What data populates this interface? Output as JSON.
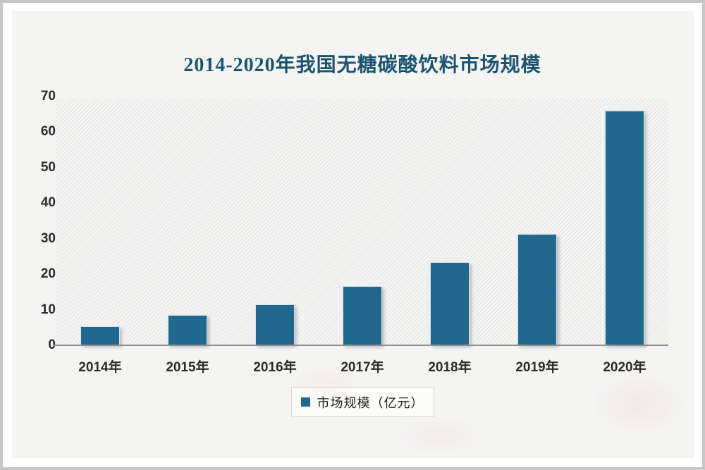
{
  "chart_data": {
    "type": "bar",
    "title": "2014-2020年我国无糖碳酸饮料市场规模",
    "categories": [
      "2014年",
      "2015年",
      "2016年",
      "2017年",
      "2018年",
      "2019年",
      "2020年"
    ],
    "values": [
      5.4,
      8.5,
      11.5,
      16.7,
      23.4,
      31.4,
      66.1
    ],
    "series_name": "市场规模（亿元）",
    "xlabel": "",
    "ylabel": "",
    "ylim": [
      0,
      70
    ],
    "ytick_step": 10,
    "ytick_labels": [
      "0",
      "10",
      "20",
      "30",
      "40",
      "50",
      "60",
      "70"
    ],
    "grid": false,
    "legend_position": "bottom",
    "plot_background": "diagonal-hatch"
  },
  "legend": {
    "label": "市场规模（亿元）"
  },
  "colors": {
    "bar": "#20688e",
    "bar_edge": "#dbeaf2",
    "title_text": "#1b5470",
    "axis_text": "#2b2b2b",
    "axis_line": "#8f8f8f",
    "panel_background": "#f4f4f3",
    "outer_border": "#c7c7c7",
    "legend_border": "#d6d6d4"
  }
}
